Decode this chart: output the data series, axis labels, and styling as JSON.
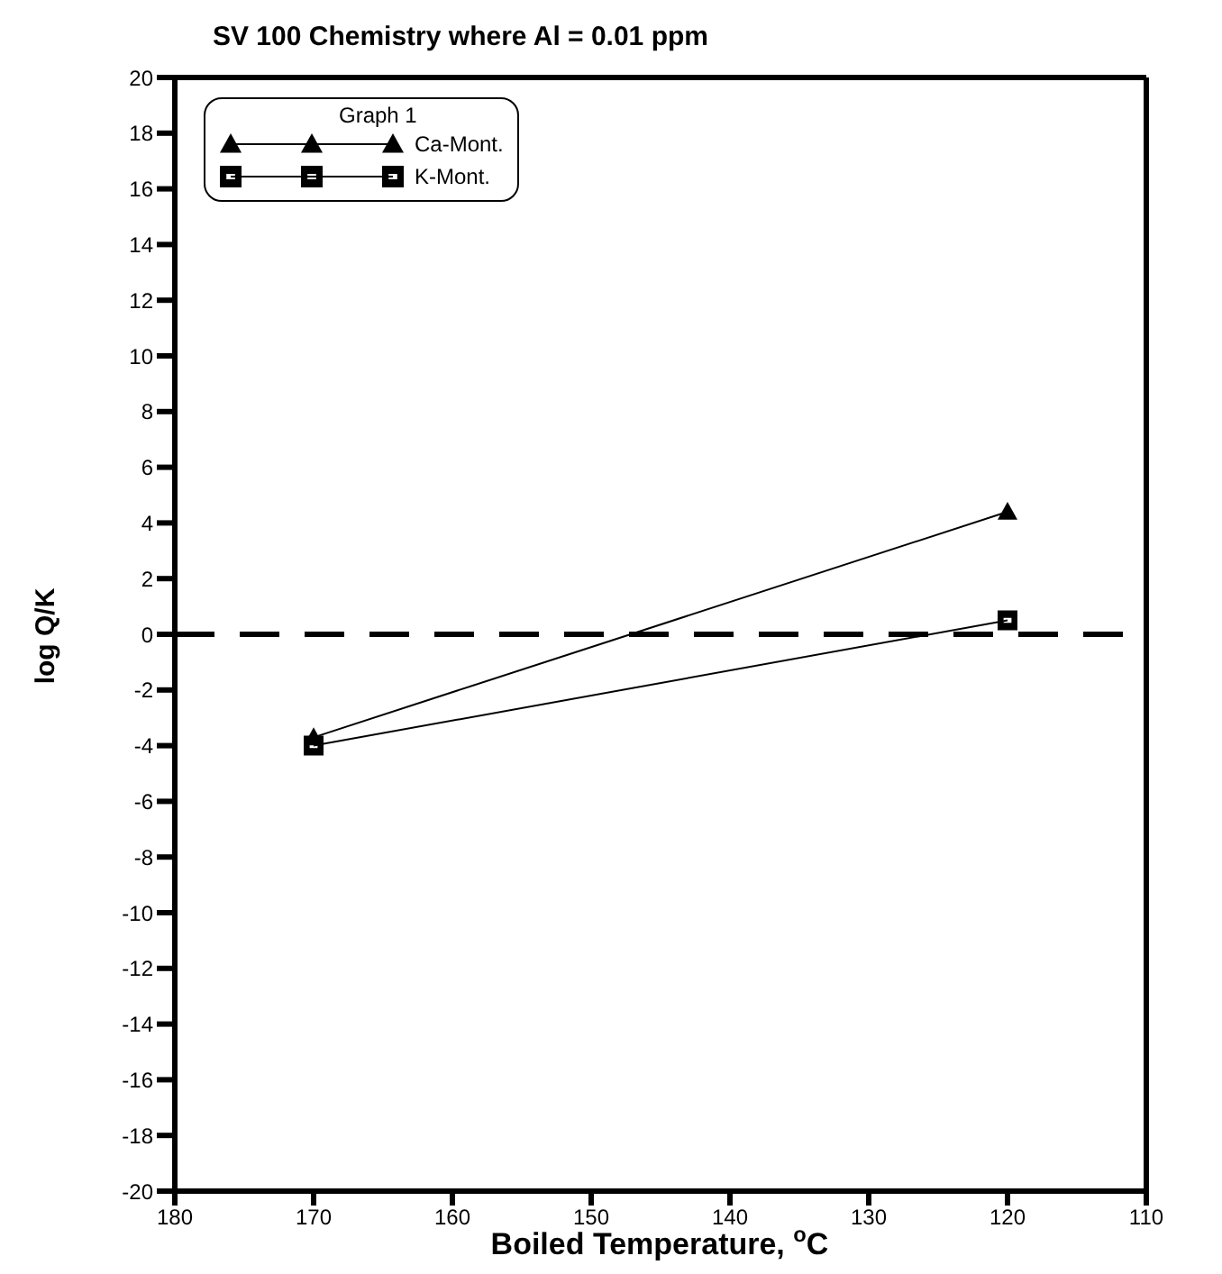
{
  "chart_data": {
    "type": "line",
    "title": "SV 100 Chemistry where Al = 0.01 ppm",
    "xlabel": "Boiled Temperature, $^{o}$C",
    "ylabel": "log Q/K",
    "legend_title": "Graph 1",
    "xlim": [
      180,
      110
    ],
    "xticks": [
      180,
      170,
      160,
      150,
      140,
      130,
      120,
      110
    ],
    "ylim": [
      -20,
      20
    ],
    "yticks": [
      -20,
      -18,
      -16,
      -14,
      -12,
      -10,
      -8,
      -6,
      -4,
      -2,
      0,
      2,
      4,
      6,
      8,
      10,
      12,
      14,
      16,
      18,
      20
    ],
    "x": [
      170,
      120
    ],
    "series": [
      {
        "name": "Ca-Mont.",
        "color": "#000000",
        "values": [
          -3.7,
          4.4
        ],
        "marker": "triangle"
      },
      {
        "name": "K-Mont.",
        "color": "#000000",
        "values": [
          -4.0,
          0.5
        ],
        "marker": "square"
      }
    ],
    "ref_lines": [
      {
        "axis": "y",
        "value": 0,
        "color": "#000000",
        "line_style": "dashed"
      }
    ],
    "legend": "top left"
  }
}
